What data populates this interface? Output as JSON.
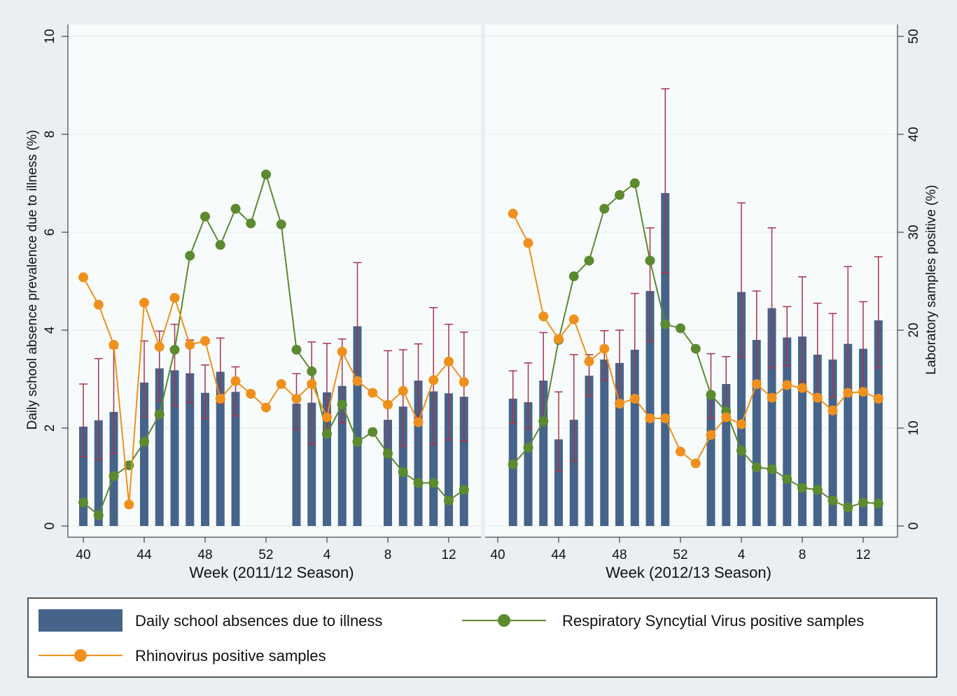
{
  "chart_data": {
    "type": "bar_line_panels",
    "y_label": "Daily school absence prevalence due to illness (%)",
    "y2_label": "Laboratory samples positive (%)",
    "ylim": [
      0,
      10
    ],
    "yticks": [
      0,
      2,
      4,
      6,
      8,
      10
    ],
    "y2lim": [
      0,
      50
    ],
    "y2ticks": [
      0,
      10,
      20,
      30,
      40,
      50
    ],
    "grid": true,
    "categories": [
      "40",
      null,
      null,
      null,
      "44",
      null,
      null,
      null,
      "48",
      null,
      null,
      null,
      "52",
      null,
      null,
      null,
      "4",
      null,
      null,
      null,
      "8",
      null,
      null,
      null,
      "12",
      null
    ],
    "panels": [
      {
        "x_label": "Week (2011/12 Season)"
      },
      {
        "x_label": "Week (2012/13 Season)"
      }
    ],
    "ci_color": "#a8344a",
    "series": [
      {
        "name": "Daily school absences due to illness",
        "kind": "bar",
        "axis": "y",
        "color": "#46648a",
        "values": [
          [
            2.03,
            2.16,
            2.33,
            null,
            2.93,
            3.22,
            3.18,
            3.12,
            2.72,
            3.15,
            2.74,
            null,
            null,
            null,
            2.5,
            2.52,
            2.73,
            2.86,
            4.08,
            null,
            2.17,
            2.44,
            2.97,
            2.75,
            2.71,
            2.64
          ],
          [
            null,
            2.6,
            2.53,
            2.97,
            1.77,
            2.17,
            3.07,
            3.4,
            3.33,
            3.6,
            4.8,
            6.8,
            null,
            null,
            2.75,
            2.9,
            4.78,
            3.8,
            4.45,
            3.85,
            3.87,
            3.5,
            3.4,
            3.72,
            3.62,
            4.2
          ]
        ],
        "ci_low": [
          [
            1.42,
            1.36,
            1.48,
            null,
            2.24,
            2.57,
            2.45,
            2.52,
            2.2,
            2.5,
            2.25,
            null,
            null,
            null,
            1.97,
            1.67,
            1.99,
            2.11,
            3.0,
            null,
            1.5,
            1.63,
            2.23,
            1.67,
            1.76,
            1.74
          ],
          [
            null,
            2.1,
            1.99,
            2.1,
            1.12,
            1.33,
            2.66,
            2.98,
            2.5,
            2.6,
            3.77,
            5.17,
            null,
            null,
            2.2,
            2.3,
            3.45,
            2.95,
            3.23,
            3.27,
            2.95,
            2.6,
            2.63,
            2.65,
            2.8,
            3.23
          ]
        ],
        "ci_high": [
          [
            2.9,
            3.42,
            3.63,
            null,
            3.78,
            3.98,
            4.12,
            3.8,
            3.29,
            3.84,
            3.25,
            null,
            null,
            null,
            3.11,
            3.76,
            3.73,
            3.82,
            5.38,
            null,
            3.58,
            3.6,
            3.72,
            4.46,
            4.12,
            3.96
          ],
          [
            null,
            3.17,
            3.33,
            3.95,
            2.74,
            3.5,
            3.5,
            3.99,
            4.0,
            4.75,
            6.09,
            8.93,
            null,
            null,
            3.52,
            3.46,
            6.6,
            4.8,
            6.09,
            4.48,
            5.09,
            4.55,
            4.34,
            5.3,
            4.58,
            5.5
          ]
        ]
      },
      {
        "name": "Respiratory Syncytial Virus positive samples",
        "kind": "line",
        "axis": "y2",
        "color": "#5b8a2f",
        "values": [
          [
            2.4,
            1.1,
            5.1,
            6.2,
            8.6,
            11.4,
            18.0,
            27.6,
            31.6,
            28.7,
            32.4,
            30.9,
            35.9,
            30.8,
            18.0,
            15.8,
            9.4,
            12.4,
            8.6,
            9.6,
            7.4,
            5.5,
            4.4,
            4.4,
            2.6,
            3.7
          ],
          [
            null,
            6.3,
            8.0,
            10.7,
            19.0,
            25.5,
            27.1,
            32.4,
            33.8,
            35.0,
            27.1,
            20.6,
            20.2,
            18.1,
            13.4,
            11.7,
            7.7,
            6.0,
            5.8,
            4.8,
            3.9,
            3.7,
            2.6,
            1.9,
            2.4,
            2.3
          ]
        ]
      },
      {
        "name": "Rhinovirus positive samples",
        "kind": "line",
        "axis": "y2",
        "color": "#f0901c",
        "values": [
          [
            25.4,
            22.6,
            18.5,
            2.2,
            22.8,
            18.3,
            23.3,
            18.5,
            18.9,
            13.0,
            14.8,
            13.5,
            12.1,
            14.5,
            13.0,
            14.5,
            11.1,
            17.8,
            14.8,
            13.6,
            12.4,
            13.8,
            10.6,
            14.9,
            16.8,
            14.7
          ],
          [
            null,
            31.9,
            28.9,
            21.4,
            19.1,
            21.1,
            16.8,
            18.1,
            12.5,
            13.0,
            11.0,
            11.0,
            7.6,
            6.4,
            9.3,
            11.1,
            10.4,
            14.5,
            13.1,
            14.4,
            14.1,
            13.1,
            11.8,
            13.6,
            13.7,
            13.0
          ]
        ]
      }
    ]
  }
}
